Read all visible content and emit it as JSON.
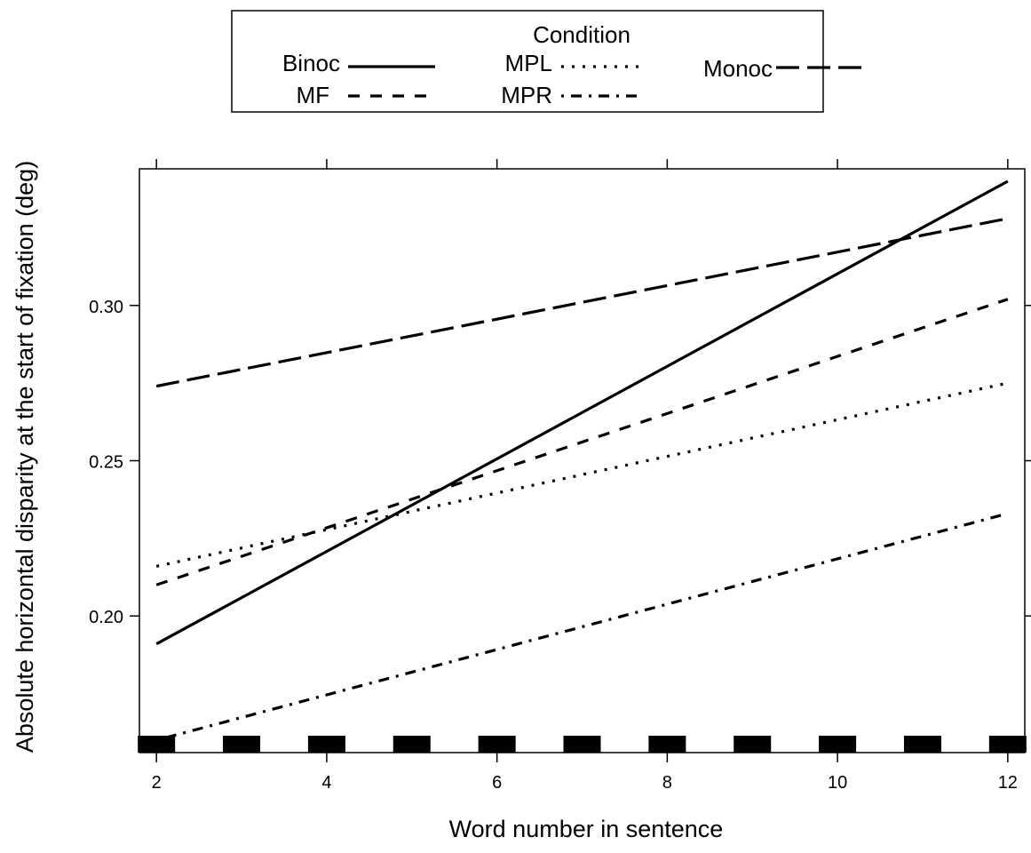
{
  "chart_data": {
    "type": "line",
    "title": "",
    "xlabel": "Word number in sentence",
    "ylabel": "Absolute horizontal disparity at the start of fixation (deg)",
    "xlim": [
      1.8,
      12.2
    ],
    "ylim": [
      0.156,
      0.344
    ],
    "x_ticks": [
      2,
      4,
      6,
      8,
      10,
      12
    ],
    "y_ticks": [
      0.2,
      0.25,
      0.3
    ],
    "x_tick_labels": [
      "2",
      "4",
      "6",
      "8",
      "10",
      "12"
    ],
    "y_tick_labels": [
      "0.20",
      "0.25",
      "0.30"
    ],
    "grid": false,
    "legend": {
      "title": "Condition",
      "placement": "top-center",
      "entries": [
        "Binoc",
        "MPL",
        "Monoc",
        "MF",
        "MPR"
      ]
    },
    "series": [
      {
        "name": "Binoc",
        "line_style": "solid",
        "x": [
          2,
          12
        ],
        "y": [
          0.191,
          0.34
        ]
      },
      {
        "name": "MF",
        "line_style": "dashed",
        "x": [
          2,
          12
        ],
        "y": [
          0.21,
          0.302
        ]
      },
      {
        "name": "MPL",
        "line_style": "dotted",
        "x": [
          2,
          12
        ],
        "y": [
          0.216,
          0.275
        ]
      },
      {
        "name": "MPR",
        "line_style": "dotdash",
        "x": [
          2,
          12
        ],
        "y": [
          0.16,
          0.233
        ]
      },
      {
        "name": "Monoc",
        "line_style": "longdash",
        "x": [
          2,
          12
        ],
        "y": [
          0.274,
          0.328
        ]
      }
    ],
    "rug_x": [
      2,
      3,
      4,
      5,
      6,
      7,
      8,
      9,
      10,
      11,
      12
    ]
  }
}
